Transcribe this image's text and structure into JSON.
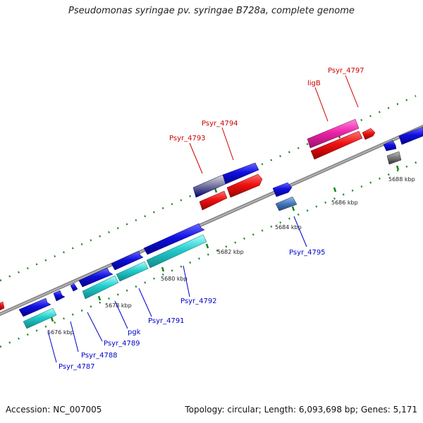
{
  "title": "Pseudomonas syringae pv. syringae B728a, complete genome",
  "footer": {
    "accession": "Accession: NC_007005",
    "topology": "Topology: circular; Length: 6,093,698 bp; Genes: 5,171"
  },
  "colors": {
    "forward_gene": "#1010e0",
    "reverse_gene": "#ee1111",
    "rna": "#22cccc",
    "pseudo": "#ee22aa",
    "other_blue": "#4477bb",
    "gray": "#777777",
    "label_forward": "#0000cc",
    "label_reverse": "#cc0000",
    "tick": "#228822"
  },
  "kbp_labels": [
    "5676 kbp",
    "5678 kbp",
    "5680 kbp",
    "5682 kbp",
    "5684 kbp",
    "5686 kbp",
    "5688 kbp"
  ],
  "gene_labels_top": [
    "Psyr_4793",
    "Psyr_4794",
    "ligB",
    "Psyr_4797"
  ],
  "gene_labels_bottom": [
    "Psyr_4787",
    "Psyr_4788",
    "Psyr_4789",
    "pgk",
    "Psyr_4791",
    "Psyr_4792",
    "Psyr_4795"
  ]
}
